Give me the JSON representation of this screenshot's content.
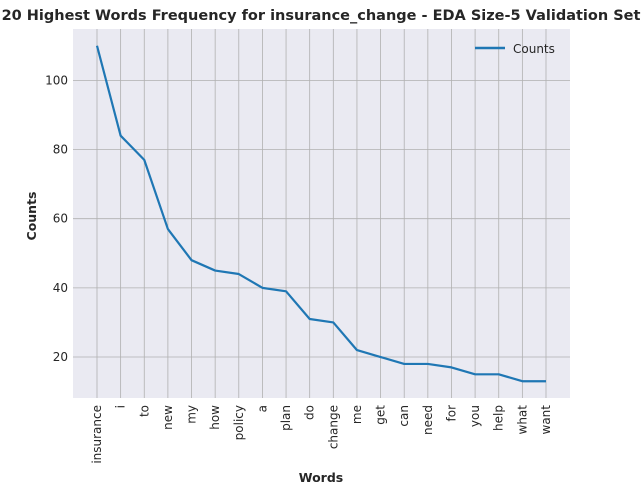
{
  "chart_data": {
    "type": "line",
    "title": "20 Highest Words Frequency for insurance_change - EDA Size-5 Validation Set",
    "xlabel": "Words",
    "ylabel": "Counts",
    "categories": [
      "insurance",
      "i",
      "to",
      "new",
      "my",
      "how",
      "policy",
      "a",
      "plan",
      "do",
      "change",
      "me",
      "get",
      "can",
      "need",
      "for",
      "you",
      "help",
      "what",
      "want"
    ],
    "series": [
      {
        "name": "Counts",
        "values": [
          110,
          84,
          77,
          57,
          48,
          45,
          44,
          40,
          39,
          31,
          30,
          22,
          20,
          18,
          18,
          17,
          15,
          15,
          13,
          13
        ],
        "color": "#1f77b4"
      }
    ],
    "ylim": [
      8.15,
      114.85
    ],
    "yticks": [
      20,
      40,
      60,
      80,
      100
    ],
    "grid": true,
    "legend": "top-right",
    "plot_background": "#eaeaf2",
    "grid_color": "#b0b0b0"
  }
}
